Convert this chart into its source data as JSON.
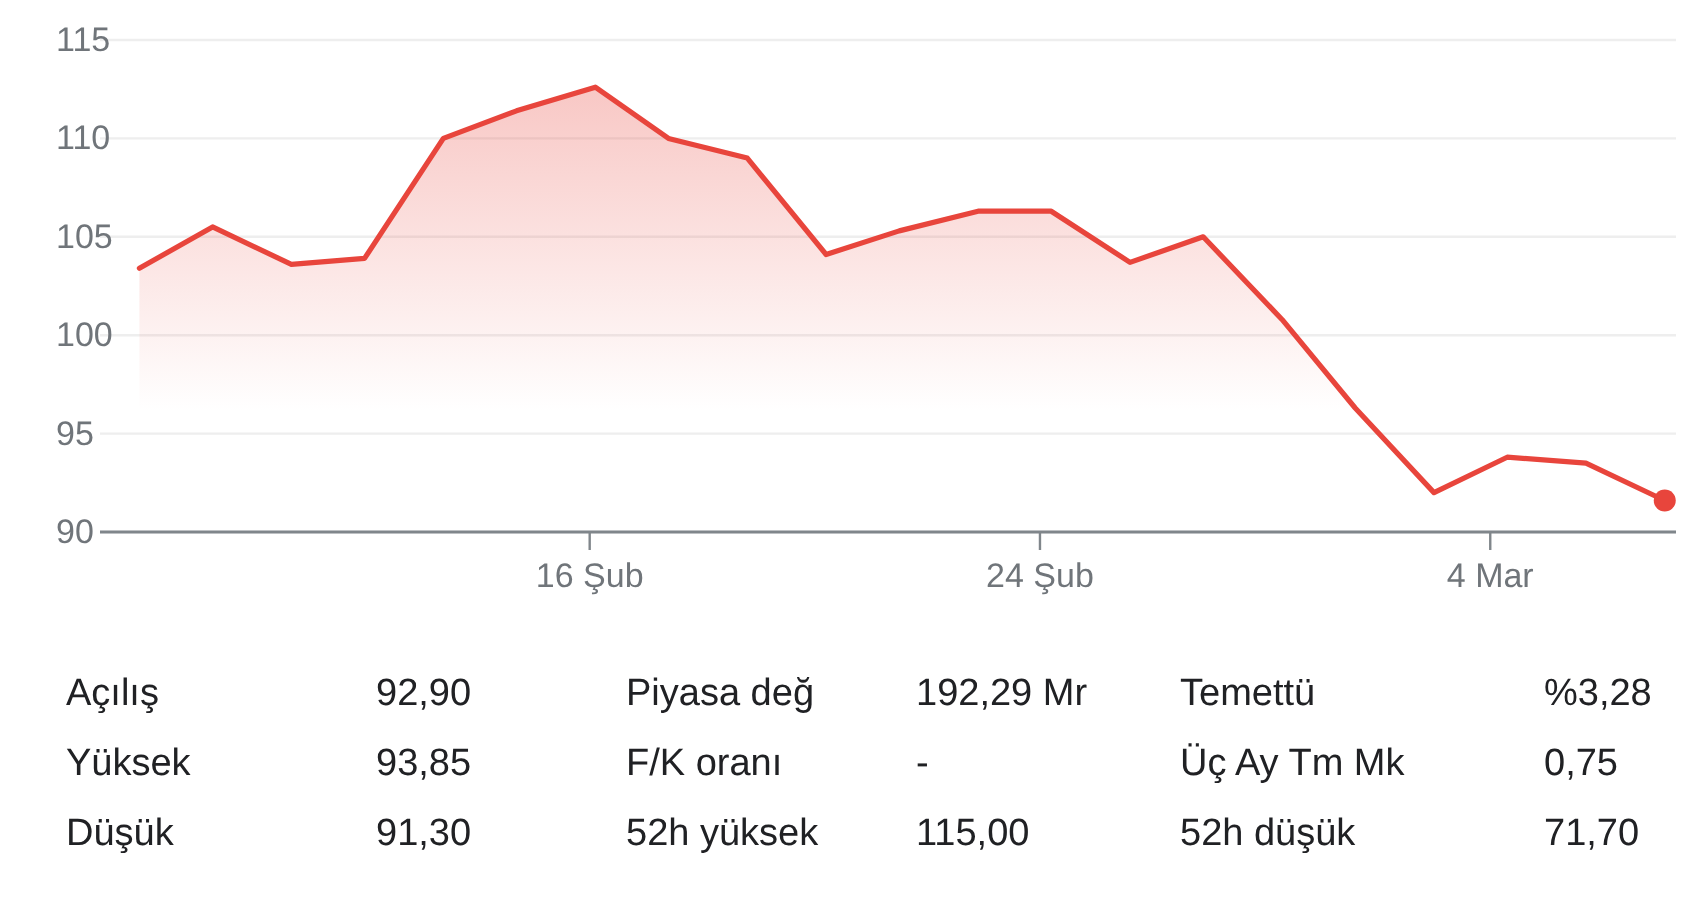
{
  "chart_data": [
    {
      "type": "area",
      "x": [
        8.0,
        9.3,
        10.7,
        12.0,
        13.4,
        14.7,
        16.1,
        17.4,
        18.8,
        20.2,
        21.5,
        22.9,
        24.2,
        25.6,
        26.9,
        28.3,
        29.6,
        31.0,
        32.3,
        33.7,
        35.1
      ],
      "series": [
        {
          "type": "area",
          "color": "#e8453c",
          "values": [
            103.4,
            105.5,
            103.6,
            103.9,
            110.0,
            111.4,
            112.6,
            110.0,
            109.0,
            104.1,
            105.3,
            106.3,
            106.3,
            103.7,
            105.0,
            100.8,
            96.3,
            92.0,
            93.8,
            93.5,
            91.6
          ]
        },
        {
          "type": "scatter",
          "color": "#e8453c",
          "marker": "circle",
          "x": [
            35.1
          ],
          "values": [
            91.6
          ]
        }
      ],
      "xlim": [
        7.3,
        35.3
      ],
      "ylim": [
        90,
        115
      ],
      "yticks": [
        90,
        95,
        100,
        105,
        110,
        115
      ],
      "xticks": [
        {
          "value": 16,
          "label": "16 Şub"
        },
        {
          "value": 24,
          "label": "24 Şub"
        },
        {
          "value": 32,
          "label": "4 Mar"
        }
      ],
      "grid": "y"
    },
    {
      "type": "other",
      "categories": [
        "Açılış",
        "Yüksek",
        "Düşük",
        "Piyasa değ",
        "F/K oranı",
        "52h yüksek",
        "Temettü",
        "Üç Ay Tm Mk",
        "52h düşük"
      ],
      "value_labels": [
        "92,90",
        "93,85",
        "91,30",
        "192,29 Mr",
        "-",
        "115,00",
        "%3,28",
        "0,75",
        "71,70"
      ]
    }
  ]
}
